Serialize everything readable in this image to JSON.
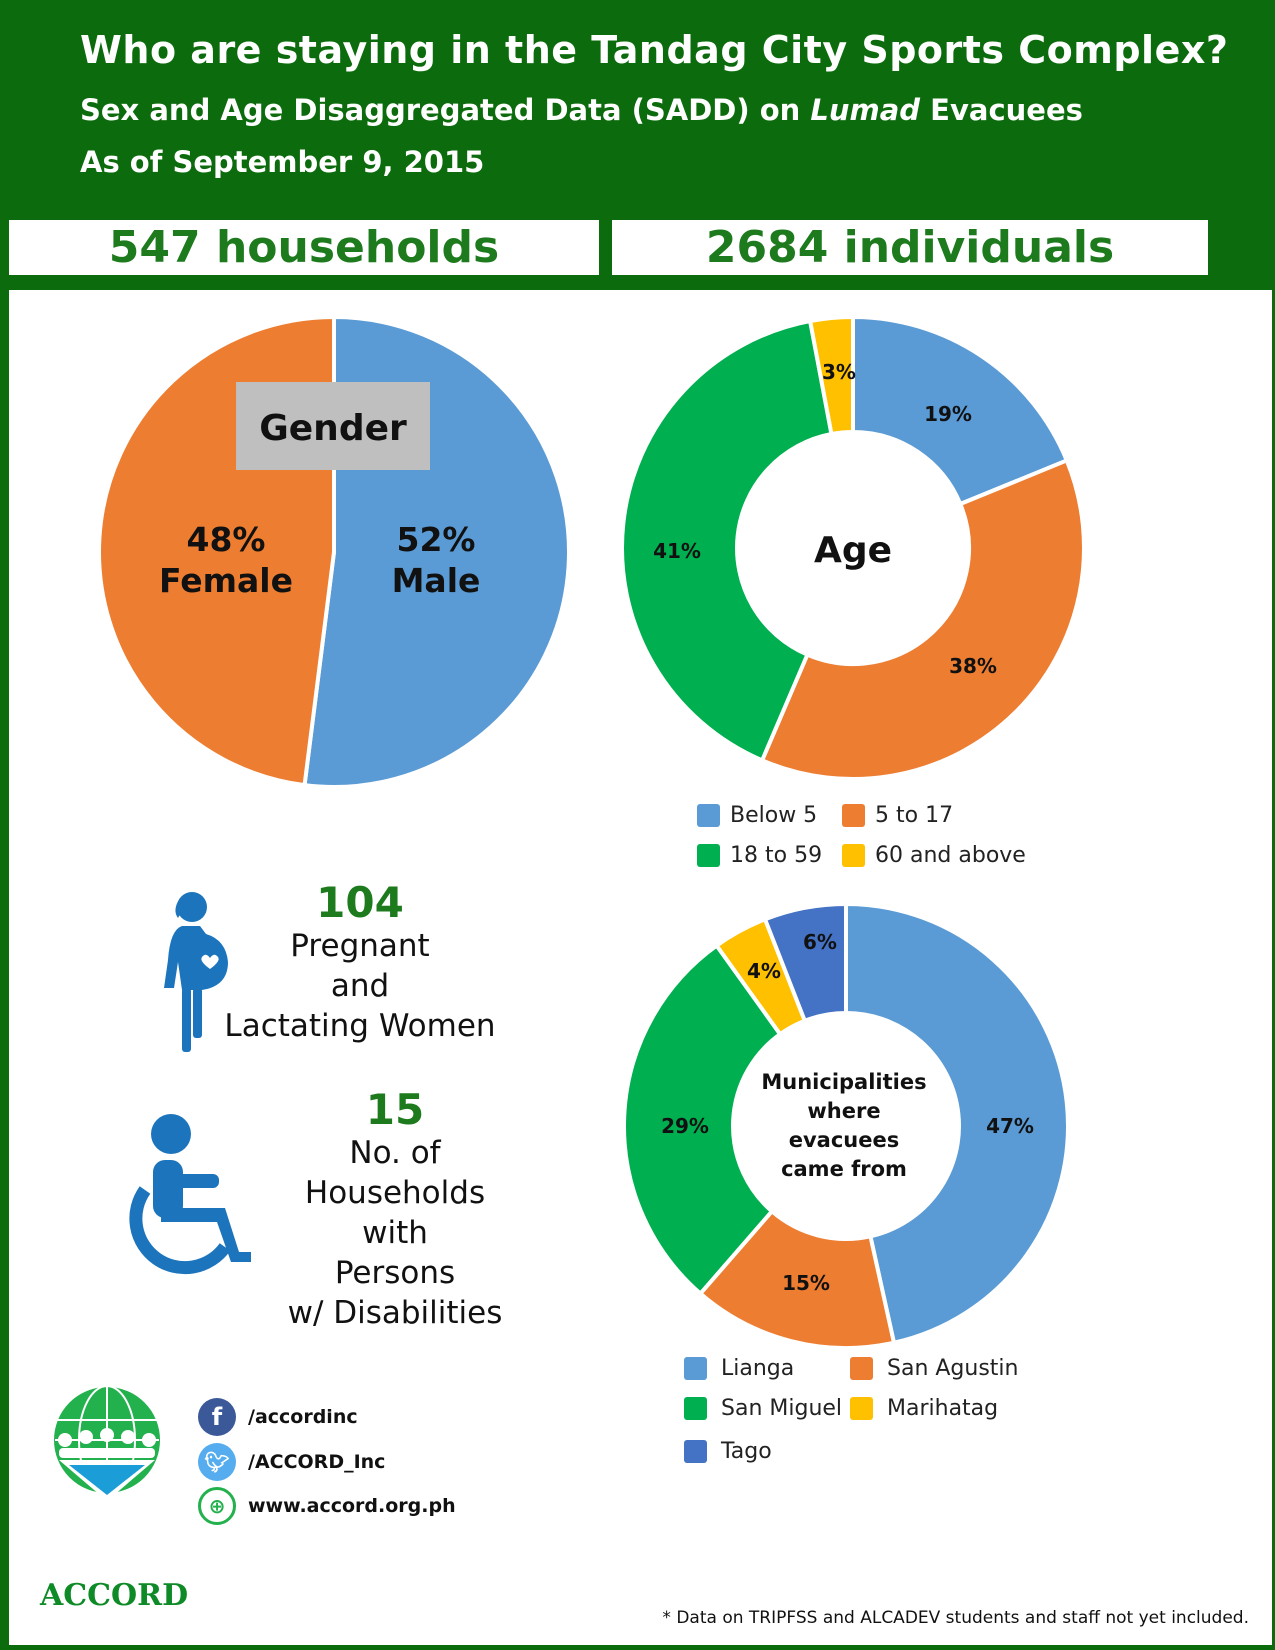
{
  "header": {
    "title": "Who are staying in the Tandag City Sports Complex?",
    "subtitle_prefix": "Sex and Age Disaggregated Data (SADD) on",
    "subtitle_emph": "Lumad",
    "subtitle_suffix": "Evacuees",
    "date": "As of September 9, 2015"
  },
  "stats": {
    "households": "547 households",
    "individuals": "2684 individuals"
  },
  "chart_data": [
    {
      "type": "pie",
      "title": "Gender",
      "categories": [
        "Male",
        "Female"
      ],
      "values": [
        52,
        48
      ],
      "labels": [
        {
          "pct": "52%",
          "name": "Male"
        },
        {
          "pct": "48%",
          "name": "Female"
        }
      ],
      "colors": [
        "#5b9bd5",
        "#ed7d31"
      ]
    },
    {
      "type": "pie",
      "title": "Age",
      "categories": [
        "Below 5",
        "5 to 17",
        "18 to 59",
        "60 and above"
      ],
      "values": [
        19,
        38,
        41,
        3
      ],
      "labels": [
        "19%",
        "38%",
        "41%",
        "3%"
      ],
      "colors": [
        "#5b9bd5",
        "#ed7d31",
        "#00b050",
        "#ffc000"
      ],
      "legend": [
        "Below 5",
        "5 to 17",
        "18 to 59",
        "60 and above"
      ]
    },
    {
      "type": "pie",
      "title": "Municipalities where evacuees came from",
      "title_lines": [
        "Municipalities",
        "where",
        "evacuees",
        "came from"
      ],
      "categories": [
        "Lianga",
        "San Agustin",
        "San Miguel",
        "Marihatag",
        "Tago"
      ],
      "values": [
        47,
        15,
        29,
        4,
        6
      ],
      "labels": [
        "47%",
        "15%",
        "29%",
        "4%",
        "6%"
      ],
      "colors": [
        "#5b9bd5",
        "#ed7d31",
        "#00b050",
        "#ffc000",
        "#4472c4"
      ],
      "legend": [
        "Lianga",
        "San Agustin",
        "San Miguel",
        "Marihatag",
        "Tago"
      ]
    }
  ],
  "info": {
    "pregnant": {
      "number": "104",
      "label_lines": [
        "Pregnant",
        "and",
        "Lactating Women"
      ]
    },
    "pwd": {
      "number": "15",
      "label_lines": [
        "No. of Households",
        "with",
        "Persons",
        "w/ Disabilities"
      ]
    }
  },
  "footer": {
    "facebook": "/accordinc",
    "twitter": "/ACCORD_Inc",
    "website": "www.accord.org.ph",
    "logo_text": "ACCORD",
    "note": "* Data on TRIPFSS and ALCADEV students and staff not yet included."
  },
  "icons": [
    "pregnant-woman-icon",
    "wheelchair-icon",
    "facebook-icon",
    "twitter-icon",
    "globe-icon",
    "accord-logo"
  ]
}
